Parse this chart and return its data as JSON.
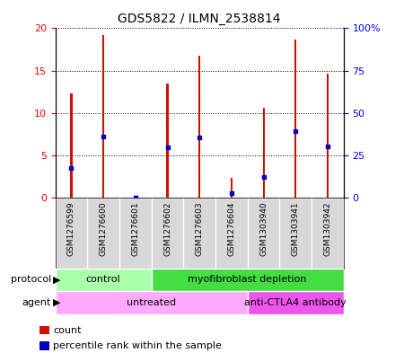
{
  "title": "GDS5822 / ILMN_2538814",
  "samples": [
    "GSM1276599",
    "GSM1276600",
    "GSM1276601",
    "GSM1276602",
    "GSM1276603",
    "GSM1276604",
    "GSM1303940",
    "GSM1303941",
    "GSM1303942"
  ],
  "counts": [
    12.3,
    19.2,
    0.05,
    13.5,
    16.8,
    2.3,
    10.6,
    18.7,
    14.6
  ],
  "percentile_ranks": [
    17.5,
    36.0,
    0.25,
    29.5,
    35.5,
    2.5,
    12.5,
    39.5,
    30.0
  ],
  "ylim_left": [
    0,
    20
  ],
  "ylim_right": [
    0,
    100
  ],
  "yticks_left": [
    0,
    5,
    10,
    15,
    20
  ],
  "yticks_right": [
    0,
    25,
    50,
    75,
    100
  ],
  "ytick_labels_left": [
    "0",
    "5",
    "10",
    "15",
    "20"
  ],
  "ytick_labels_right": [
    "0",
    "25",
    "50",
    "75",
    "100%"
  ],
  "bar_color": "#cc1100",
  "dot_color": "#0000bb",
  "protocol_groups": [
    {
      "label": "control",
      "start": 0,
      "end": 3,
      "color": "#aaffaa"
    },
    {
      "label": "myofibroblast depletion",
      "start": 3,
      "end": 9,
      "color": "#44dd44"
    }
  ],
  "agent_groups": [
    {
      "label": "untreated",
      "start": 0,
      "end": 6,
      "color": "#ffaaff"
    },
    {
      "label": "anti-CTLA4 antibody",
      "start": 6,
      "end": 9,
      "color": "#ee55ee"
    }
  ],
  "bg_color": "#d8d8d8",
  "plot_bg": "#ffffff",
  "bar_width": 0.06
}
